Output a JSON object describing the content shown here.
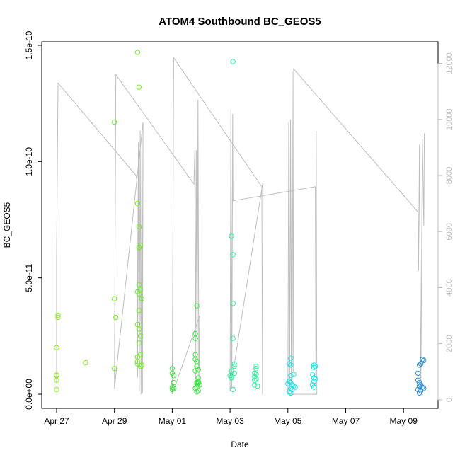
{
  "chart_data": {
    "type": "scatter",
    "title": "ATOM4 Southbound BC_GEOS5",
    "xlabel": "Date",
    "ylabel": "BC_GEOS5",
    "x_ticks": [
      "Apr 27",
      "Apr 29",
      "May 01",
      "May 03",
      "May 05",
      "May 07",
      "May 09"
    ],
    "x_tick_days": [
      0,
      2,
      4,
      6,
      8,
      10,
      12
    ],
    "y_ticks": [
      "0.0e+00",
      "5.0e-11",
      "1.0e-10",
      "1.5e-10"
    ],
    "y_tick_values": [
      0,
      5e-11,
      1e-10,
      1.5e-10
    ],
    "ylim": [
      0,
      1.5e-10
    ],
    "y2_ticks": [
      "0",
      "2000",
      "4000",
      "6000",
      "8000",
      "10000",
      "12000"
    ],
    "y2_tick_values": [
      0,
      2000,
      4000,
      6000,
      8000,
      10000,
      12000
    ],
    "y2lim": [
      0,
      12000
    ],
    "colors": {
      "axis": "#000000",
      "axis2": "#bebebe",
      "altitude_line": "#bebebe"
    },
    "series": [
      {
        "color": "#8cee1e",
        "points": [
          [
            0.0,
            8e-12
          ],
          [
            0.0,
            8.2e-12
          ],
          [
            0.0,
            6e-12
          ],
          [
            0.0,
            2e-12
          ],
          [
            0.05,
            3.3e-11
          ],
          [
            0.05,
            3.4e-11
          ],
          [
            0.0,
            2e-11
          ],
          [
            1.0,
            1.35e-11
          ]
        ]
      },
      {
        "color": "#6ef01a",
        "points": [
          [
            2.0,
            1.17e-10
          ],
          [
            2.0,
            4.1e-11
          ],
          [
            2.05,
            3.3e-11
          ],
          [
            2.0,
            1.1e-11
          ],
          [
            2.8,
            1.47e-10
          ],
          [
            2.85,
            1.32e-10
          ],
          [
            2.8,
            8.2e-11
          ],
          [
            2.85,
            7.2e-11
          ],
          [
            2.85,
            6.3e-11
          ],
          [
            2.9,
            6.4e-11
          ],
          [
            2.85,
            4.7e-11
          ],
          [
            2.9,
            4.5e-11
          ],
          [
            2.8,
            4.4e-11
          ],
          [
            2.85,
            4.3e-11
          ],
          [
            2.95,
            4.1e-11
          ],
          [
            2.85,
            3.6e-11
          ],
          [
            2.8,
            3e-11
          ],
          [
            2.85,
            2.8e-11
          ],
          [
            2.9,
            2.5e-11
          ],
          [
            2.85,
            2.2e-11
          ],
          [
            2.9,
            1.7e-11
          ],
          [
            2.8,
            1.6e-11
          ],
          [
            2.8,
            1.4e-11
          ],
          [
            2.8,
            1.3e-11
          ],
          [
            2.95,
            1.25e-11
          ],
          [
            2.9,
            1.2e-11
          ]
        ]
      },
      {
        "color": "#3ae640",
        "points": [
          [
            4.0,
            1.1e-11
          ],
          [
            4.0,
            9e-12
          ],
          [
            4.05,
            8e-12
          ],
          [
            4.05,
            5e-12
          ],
          [
            4.0,
            3e-12
          ],
          [
            4.05,
            2.5e-12
          ],
          [
            4.0,
            2e-12
          ],
          [
            4.85,
            3.8e-11
          ],
          [
            4.8,
            2.6e-11
          ],
          [
            4.8,
            2.4e-11
          ],
          [
            4.8,
            1.7e-11
          ],
          [
            4.8,
            1.5e-11
          ],
          [
            4.85,
            1.4e-11
          ],
          [
            4.85,
            1.2e-11
          ],
          [
            4.9,
            1.05e-11
          ],
          [
            4.8,
            1e-11
          ],
          [
            4.9,
            7e-12
          ],
          [
            4.9,
            5.5e-12
          ],
          [
            4.85,
            5e-12
          ],
          [
            4.9,
            4.8e-12
          ],
          [
            4.85,
            4.5e-12
          ],
          [
            4.95,
            4e-12
          ],
          [
            4.85,
            3e-12
          ],
          [
            4.8,
            2.5e-12
          ],
          [
            4.9,
            1.5e-12
          ],
          [
            4.85,
            1e-12
          ]
        ]
      },
      {
        "color": "#2ef0a0",
        "points": [
          [
            6.1,
            1.43e-10
          ],
          [
            6.05,
            6.8e-11
          ],
          [
            6.1,
            6e-11
          ],
          [
            6.1,
            3.9e-11
          ],
          [
            6.1,
            2.4e-11
          ],
          [
            6.15,
            1.3e-11
          ],
          [
            6.15,
            1.2e-11
          ],
          [
            6.05,
            1e-11
          ],
          [
            6.15,
            9e-12
          ],
          [
            6.0,
            8e-12
          ],
          [
            6.05,
            7.5e-12
          ],
          [
            6.05,
            7e-12
          ],
          [
            6.1,
            2e-12
          ],
          [
            6.9,
            1.2e-11
          ],
          [
            6.9,
            1.1e-11
          ],
          [
            6.85,
            9e-12
          ],
          [
            6.9,
            8.5e-12
          ],
          [
            6.85,
            7.5e-12
          ],
          [
            6.9,
            6.5e-12
          ],
          [
            6.85,
            6e-12
          ],
          [
            6.85,
            4e-12
          ],
          [
            6.95,
            3.5e-12
          ]
        ]
      },
      {
        "color": "#1ee0e6",
        "points": [
          [
            8.1,
            1.55e-11
          ],
          [
            8.05,
            1.3e-11
          ],
          [
            8.1,
            1.25e-11
          ],
          [
            8.2,
            8.5e-12
          ],
          [
            8.1,
            8e-12
          ],
          [
            8.05,
            5.5e-12
          ],
          [
            8.1,
            5e-12
          ],
          [
            8.0,
            4.5e-12
          ],
          [
            8.15,
            4e-12
          ],
          [
            8.2,
            3.5e-12
          ],
          [
            8.25,
            3e-12
          ],
          [
            8.1,
            2.5e-12
          ],
          [
            8.15,
            2e-12
          ],
          [
            8.05,
            1e-12
          ],
          [
            8.1,
            5e-13
          ],
          [
            8.9,
            1.25e-11
          ],
          [
            8.95,
            1.2e-11
          ],
          [
            8.9,
            1.15e-11
          ],
          [
            8.85,
            8.5e-12
          ],
          [
            8.9,
            7e-12
          ],
          [
            8.95,
            6.5e-12
          ],
          [
            8.9,
            5.5e-12
          ],
          [
            8.85,
            4e-12
          ],
          [
            8.9,
            3e-12
          ]
        ]
      },
      {
        "color": "#2a8fdc",
        "points": [
          [
            12.65,
            1.5e-11
          ],
          [
            12.7,
            1.45e-11
          ],
          [
            12.6,
            1.3e-11
          ],
          [
            12.55,
            1.25e-11
          ],
          [
            12.5,
            9e-12
          ],
          [
            12.5,
            6e-12
          ],
          [
            12.55,
            5e-12
          ],
          [
            12.6,
            4e-12
          ],
          [
            12.55,
            3.5e-12
          ],
          [
            12.65,
            3e-12
          ],
          [
            12.7,
            2.5e-12
          ],
          [
            12.5,
            2e-12
          ],
          [
            12.6,
            1.5e-12
          ],
          [
            12.55,
            5e-13
          ]
        ]
      }
    ],
    "altitude_line": [
      [
        0.0,
        600
      ],
      [
        0.0,
        5100
      ],
      [
        0.05,
        11300
      ],
      [
        2.75,
        8000
      ],
      [
        2.78,
        7800
      ],
      [
        2.8,
        800
      ],
      [
        2.83,
        9200
      ],
      [
        2.86,
        300
      ],
      [
        2.89,
        9600
      ],
      [
        2.92,
        200
      ],
      [
        2.95,
        9400
      ],
      [
        2.97,
        250
      ],
      [
        2.99,
        9900
      ],
      [
        2.0,
        400
      ],
      [
        2.05,
        11600
      ],
      [
        4.75,
        7700
      ],
      [
        4.78,
        8900
      ],
      [
        4.8,
        500
      ],
      [
        4.83,
        8900
      ],
      [
        4.86,
        400
      ],
      [
        4.89,
        10700
      ],
      [
        4.92,
        400
      ],
      [
        4.95,
        3000
      ],
      [
        4.0,
        200
      ],
      [
        4.05,
        12200
      ],
      [
        7.1,
        7600
      ],
      [
        7.12,
        200
      ],
      [
        7.14,
        7800
      ],
      [
        6.0,
        300
      ],
      [
        6.03,
        10400
      ],
      [
        6.06,
        400
      ],
      [
        6.09,
        10200
      ],
      [
        6.1,
        7100
      ],
      [
        8.95,
        7600
      ],
      [
        8.97,
        300
      ],
      [
        8.98,
        9600
      ],
      [
        9.0,
        200
      ],
      [
        8.0,
        200
      ],
      [
        8.03,
        9900
      ],
      [
        8.06,
        300
      ],
      [
        8.09,
        10000
      ],
      [
        8.12,
        700
      ],
      [
        8.15,
        11700
      ],
      [
        8.18,
        1000
      ],
      [
        8.2,
        11800
      ],
      [
        12.5,
        6700
      ],
      [
        12.52,
        4600
      ],
      [
        12.55,
        9100
      ],
      [
        12.6,
        300
      ],
      [
        12.65,
        9300
      ],
      [
        12.7,
        6200
      ],
      [
        12.72,
        9500
      ]
    ]
  }
}
